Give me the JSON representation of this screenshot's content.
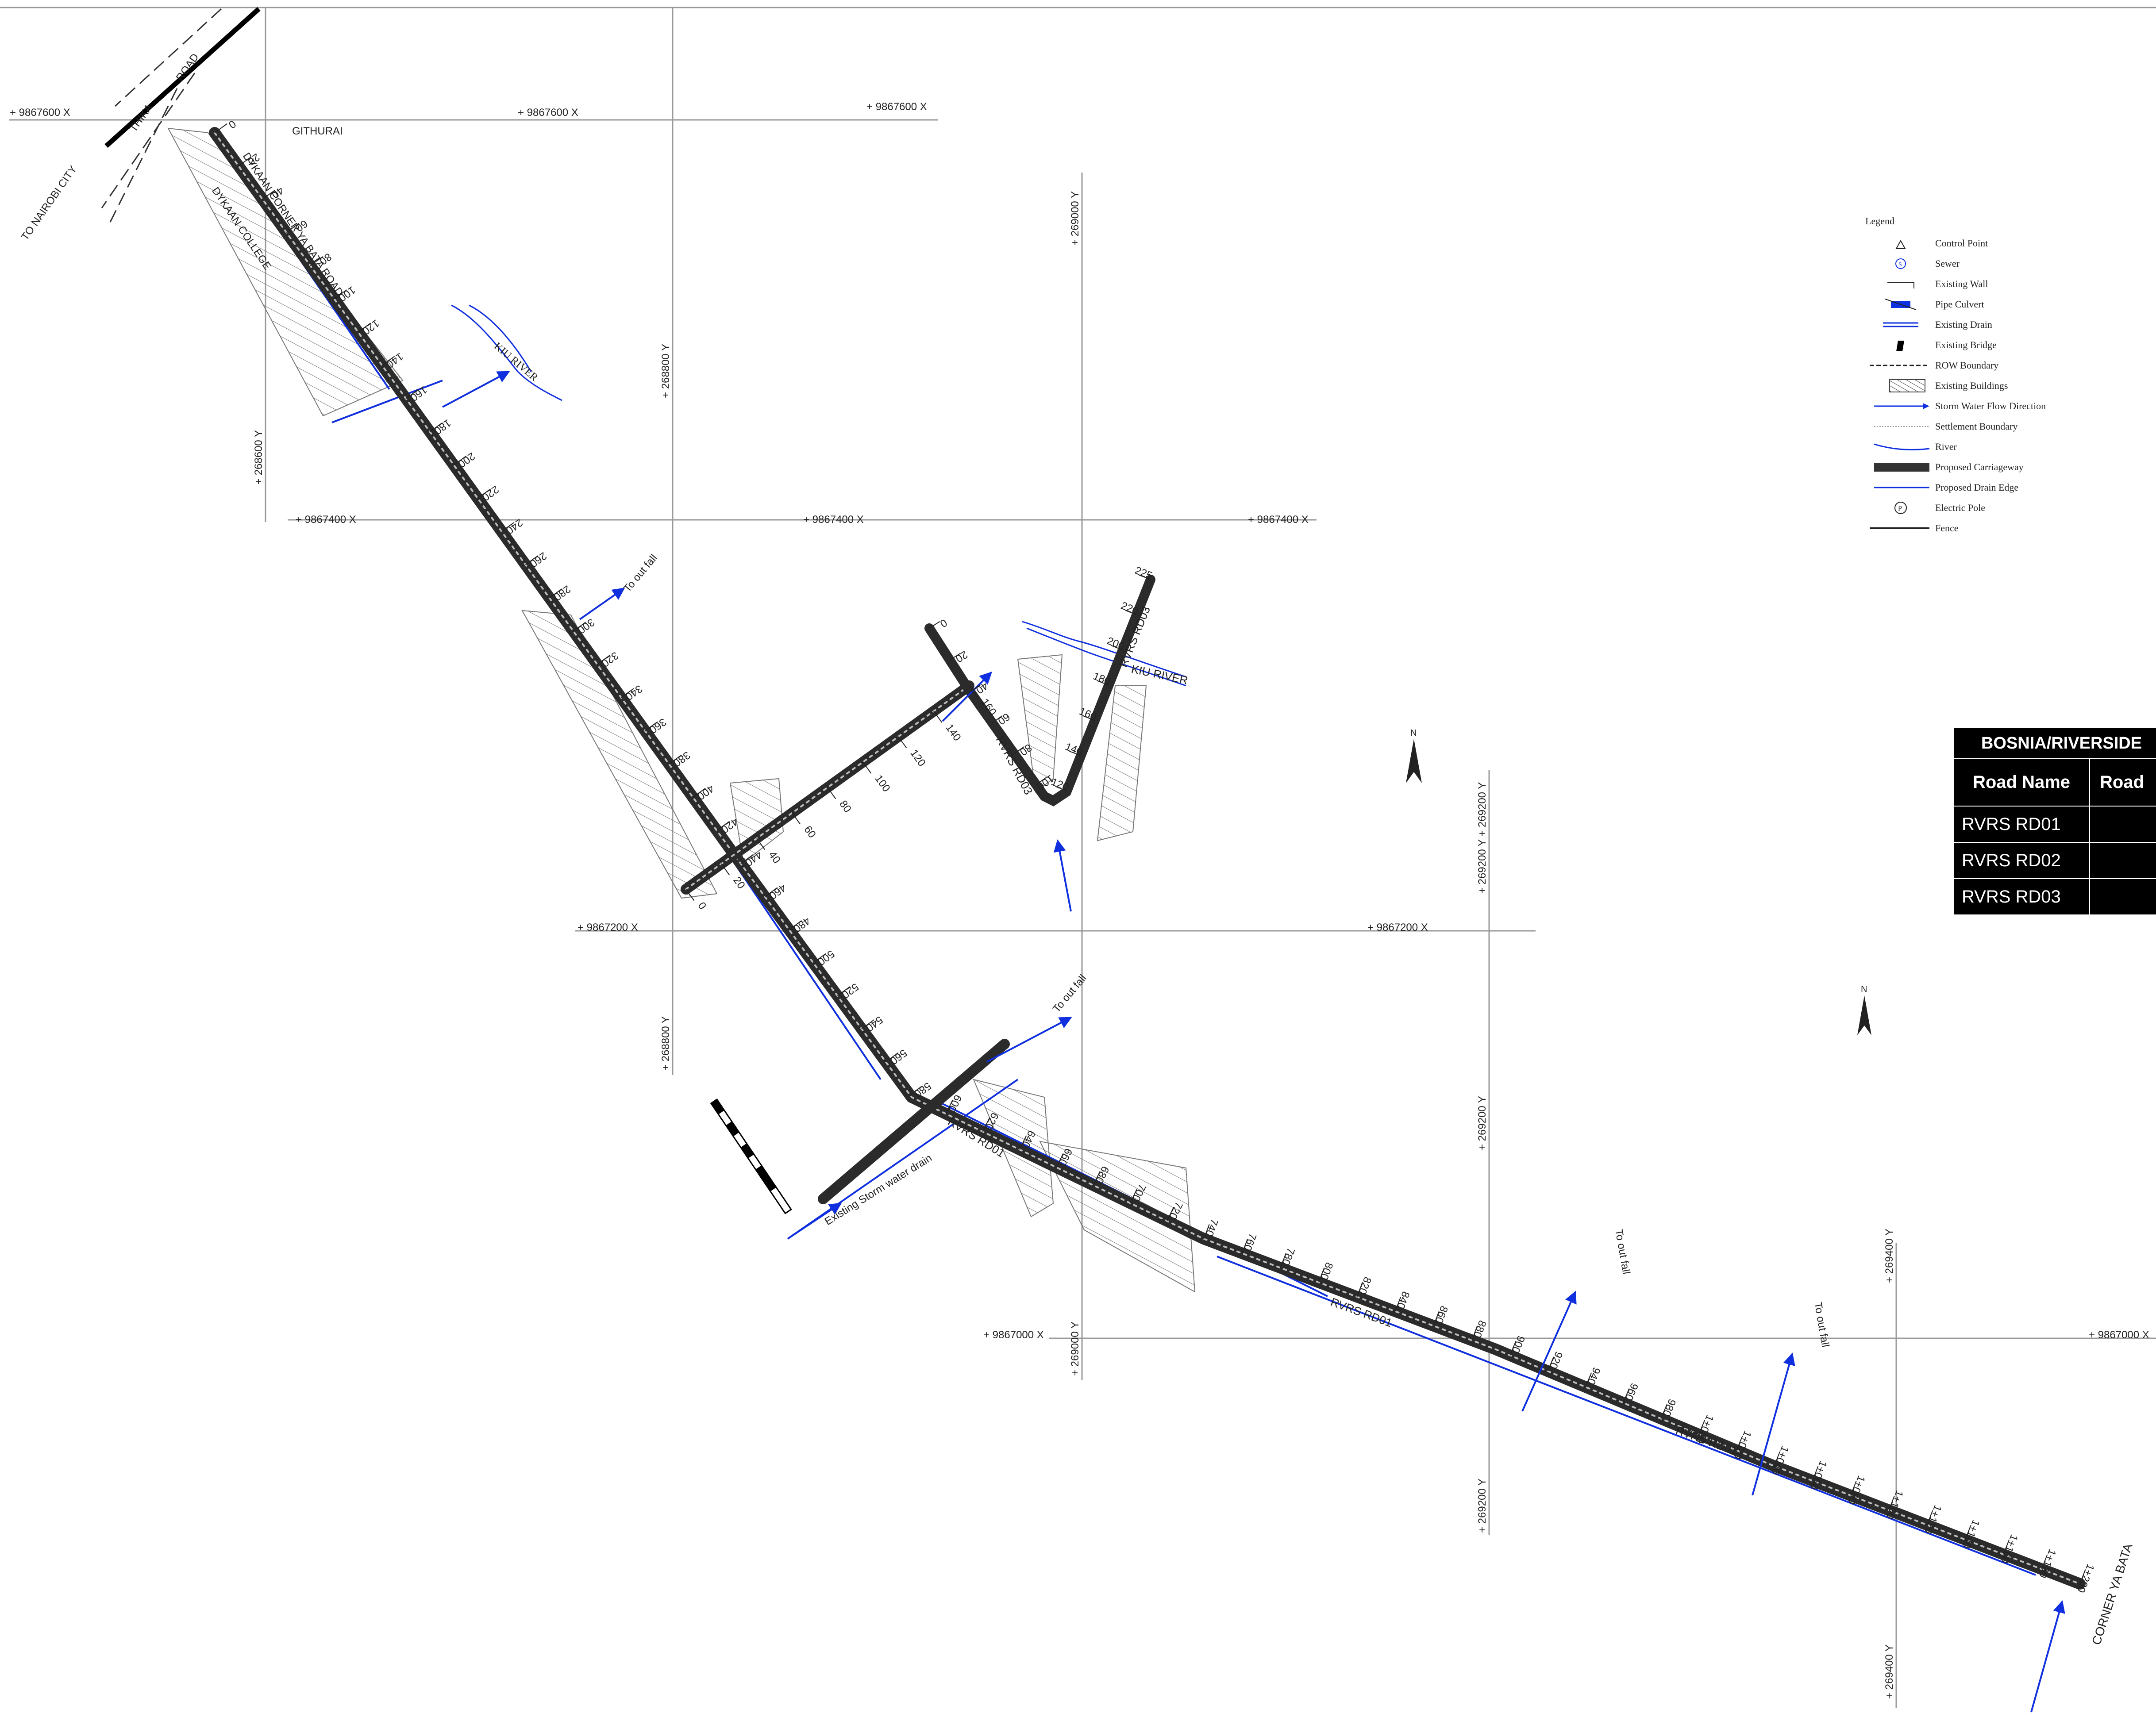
{
  "grid": {
    "x_labels": [
      "+ 9867600 X",
      "+ 9867600 X",
      "+ 9867600 X",
      "+ 9867400 X",
      "+ 9867400 X",
      "+ 9867400 X",
      "+ 9867200 X",
      "+ 9867200 X",
      "+ 9867000 X",
      "+ 9867000 X"
    ],
    "y_labels": [
      "+ 268600 Y",
      "+ 268800 Y",
      "+ 269000 Y",
      "+ 269200 Y + 269200 Y",
      "+ 268800 Y",
      "+ 269200 Y",
      "+ 269000 Y",
      "+ 269400 Y",
      "+ 269200 Y",
      "+ 269400 Y"
    ]
  },
  "places": {
    "to_nairobi": "TO NAIROBI CITY",
    "thika": "THIKA",
    "road": "ROAD",
    "githurai": "GITHURAI",
    "dykaan_corner": "DYKAAN CORNER YA BATA ROAD",
    "dykaan_college": "DYKAAN COLLEGE",
    "kiu_river_1": "KIU RIVER",
    "kiu_river_2": "KIU RIVER",
    "corner_ya_bata": "CORNER YA BATA",
    "to_outfall": "To out fall",
    "existing_storm": "Existing Storm water drain",
    "rvrs_rd01": "RVRS RD01",
    "rvrs_rd02": "RVRS RD02",
    "rvrs_rd03": "RVRS RD03"
  },
  "chainage": {
    "rd01": [
      "0",
      "20",
      "40",
      "60",
      "80",
      "100",
      "120",
      "140",
      "160",
      "180",
      "200",
      "220",
      "240",
      "260",
      "280",
      "300",
      "320",
      "340",
      "360",
      "380",
      "400",
      "420",
      "440",
      "460",
      "480",
      "500",
      "520",
      "540",
      "560",
      "580",
      "600",
      "620",
      "640",
      "660",
      "680",
      "700",
      "720",
      "740",
      "760",
      "780",
      "800",
      "820",
      "840",
      "860",
      "880",
      "900",
      "920",
      "940",
      "960",
      "980",
      "1+000",
      "1+020",
      "1+040",
      "1+060",
      "1+080",
      "1+100",
      "1+120",
      "1+140",
      "1+160",
      "1+180",
      "1+200"
    ],
    "rd02": [
      "0",
      "20",
      "40",
      "60",
      "80",
      "100",
      "120",
      "140",
      "160"
    ],
    "rd03": [
      "0",
      "20",
      "40",
      "60",
      "80",
      "100",
      "120",
      "140",
      "160",
      "180",
      "200",
      "220",
      "225"
    ]
  },
  "legend": {
    "title": "Legend",
    "items": [
      {
        "label": "Control Point",
        "icon": "control-point-icon"
      },
      {
        "label": "Sewer",
        "icon": "sewer-icon"
      },
      {
        "label": "Existing Wall",
        "icon": "wall-icon"
      },
      {
        "label": "Pipe Culvert",
        "icon": "culvert-icon"
      },
      {
        "label": "Existing Drain",
        "icon": "drain-icon"
      },
      {
        "label": "Existing Bridge",
        "icon": "bridge-icon"
      },
      {
        "label": "ROW Boundary",
        "icon": "row-boundary-icon"
      },
      {
        "label": "Existing Buildings",
        "icon": "buildings-icon"
      },
      {
        "label": "Storm Water Flow Direction",
        "icon": "flow-arrow-icon"
      },
      {
        "label": "Settlement Boundary",
        "icon": "settlement-icon"
      },
      {
        "label": "River",
        "icon": "river-icon"
      },
      {
        "label": "Proposed Carriageway",
        "icon": "carriageway-icon"
      },
      {
        "label": "Proposed Drain Edge",
        "icon": "drain-edge-icon"
      },
      {
        "label": "Electric Pole",
        "icon": "electric-pole-icon"
      },
      {
        "label": "Fence",
        "icon": "fence-icon"
      }
    ]
  },
  "table": {
    "title": "BOSNIA/RIVERSIDE",
    "headers": [
      "Road Name",
      "Road"
    ],
    "rows": [
      {
        "name": "RVRS RD01",
        "value": ""
      },
      {
        "name": "RVRS RD02",
        "value": ""
      },
      {
        "name": "RVRS RD03",
        "value": ""
      }
    ]
  },
  "colors": {
    "road": "#2b2b2b",
    "drain": "#1030e0",
    "grid": "#9a9a9a",
    "hatch": "#777777"
  }
}
